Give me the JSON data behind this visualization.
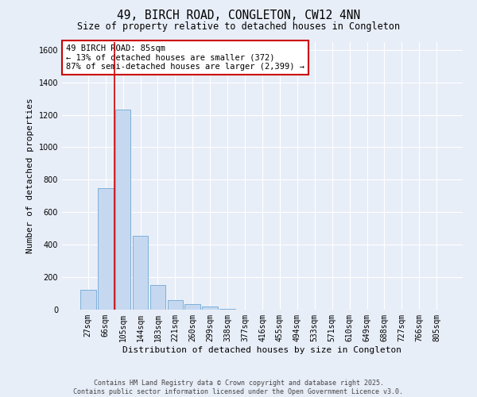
{
  "title": "49, BIRCH ROAD, CONGLETON, CW12 4NN",
  "subtitle": "Size of property relative to detached houses in Congleton",
  "xlabel": "Distribution of detached houses by size in Congleton",
  "ylabel": "Number of detached properties",
  "categories": [
    "27sqm",
    "66sqm",
    "105sqm",
    "144sqm",
    "183sqm",
    "221sqm",
    "260sqm",
    "299sqm",
    "338sqm",
    "377sqm",
    "416sqm",
    "455sqm",
    "494sqm",
    "533sqm",
    "571sqm",
    "610sqm",
    "649sqm",
    "688sqm",
    "727sqm",
    "766sqm",
    "805sqm"
  ],
  "values": [
    120,
    750,
    1230,
    455,
    150,
    60,
    33,
    18,
    5,
    0,
    0,
    0,
    0,
    0,
    0,
    0,
    0,
    0,
    0,
    0,
    0
  ],
  "bar_color": "#c5d8f0",
  "bar_edge_color": "#6fa8d5",
  "vline_x_idx": 1.5,
  "vline_color": "#cc0000",
  "annotation_text": "49 BIRCH ROAD: 85sqm\n← 13% of detached houses are smaller (372)\n87% of semi-detached houses are larger (2,399) →",
  "annotation_box_color": "#ffffff",
  "annotation_box_edge_color": "#cc0000",
  "ylim": [
    0,
    1650
  ],
  "yticks": [
    0,
    200,
    400,
    600,
    800,
    1000,
    1200,
    1400,
    1600
  ],
  "background_color": "#e8eef8",
  "grid_color": "#ffffff",
  "footer_text": "Contains HM Land Registry data © Crown copyright and database right 2025.\nContains public sector information licensed under the Open Government Licence v3.0.",
  "title_fontsize": 10.5,
  "subtitle_fontsize": 8.5,
  "xlabel_fontsize": 8,
  "ylabel_fontsize": 8,
  "tick_fontsize": 7,
  "footer_fontsize": 6,
  "annotation_fontsize": 7.5
}
